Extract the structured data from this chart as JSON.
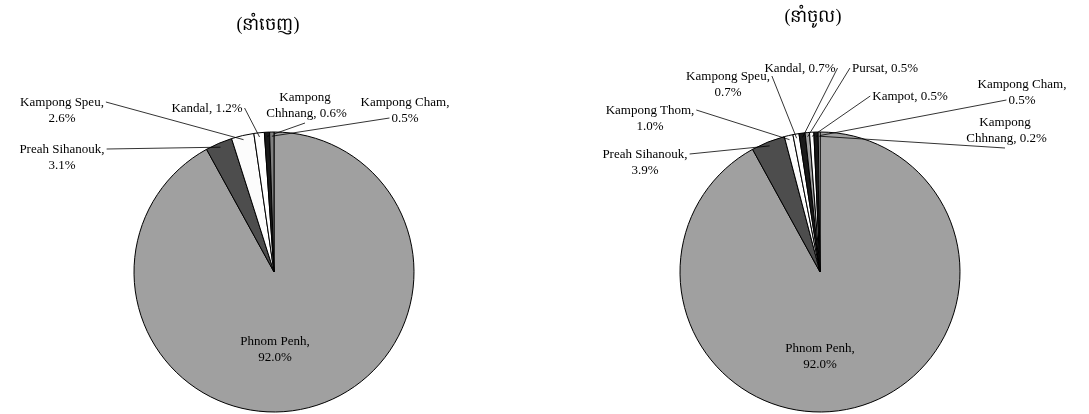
{
  "chart_data": [
    {
      "type": "pie",
      "title": "(នាំចេញ)",
      "categories": [
        "Phnom Penh",
        "Preah Sihanouk",
        "Kampong Speu",
        "Kandal",
        "Kampong Chhnang",
        "Kampong Cham"
      ],
      "values": [
        92.0,
        3.1,
        2.6,
        1.2,
        0.6,
        0.5
      ],
      "colors": [
        "#a0a0a0",
        "#4d4d4d",
        "#fcfcfc",
        "#ffffff",
        "#1a1a1a",
        "#808080"
      ],
      "value_labels": [
        ", 92.0%",
        ", 3.1%",
        ", 2.6%",
        ", 1.2%",
        ", 0.6%",
        ", 0.5%"
      ]
    },
    {
      "type": "pie",
      "title": "(នាំចូល)",
      "categories": [
        "Phnom Penh",
        "Preah Sihanouk",
        "Kampong Thom",
        "Kampong Speu",
        "Kandal",
        "Pursat",
        "Kampot",
        "Kampong Cham",
        "Kampong Chhnang"
      ],
      "values": [
        92.0,
        3.9,
        1.0,
        0.7,
        0.7,
        0.5,
        0.5,
        0.5,
        0.2
      ],
      "colors": [
        "#a0a0a0",
        "#4d4d4d",
        "#fcfcfc",
        "#ffffff",
        "#1a1a1a",
        "#a0a0a0",
        "#ffffff",
        "#1a1a1a",
        "#ffffff"
      ],
      "value_labels": [
        ", 92.0%",
        ", 3.9%",
        ", 1.0%",
        ", 0.7%",
        ", 0.7%",
        ", 0.5%",
        ", 0.5%",
        ", 0.5%",
        ", 0.2%"
      ]
    }
  ]
}
